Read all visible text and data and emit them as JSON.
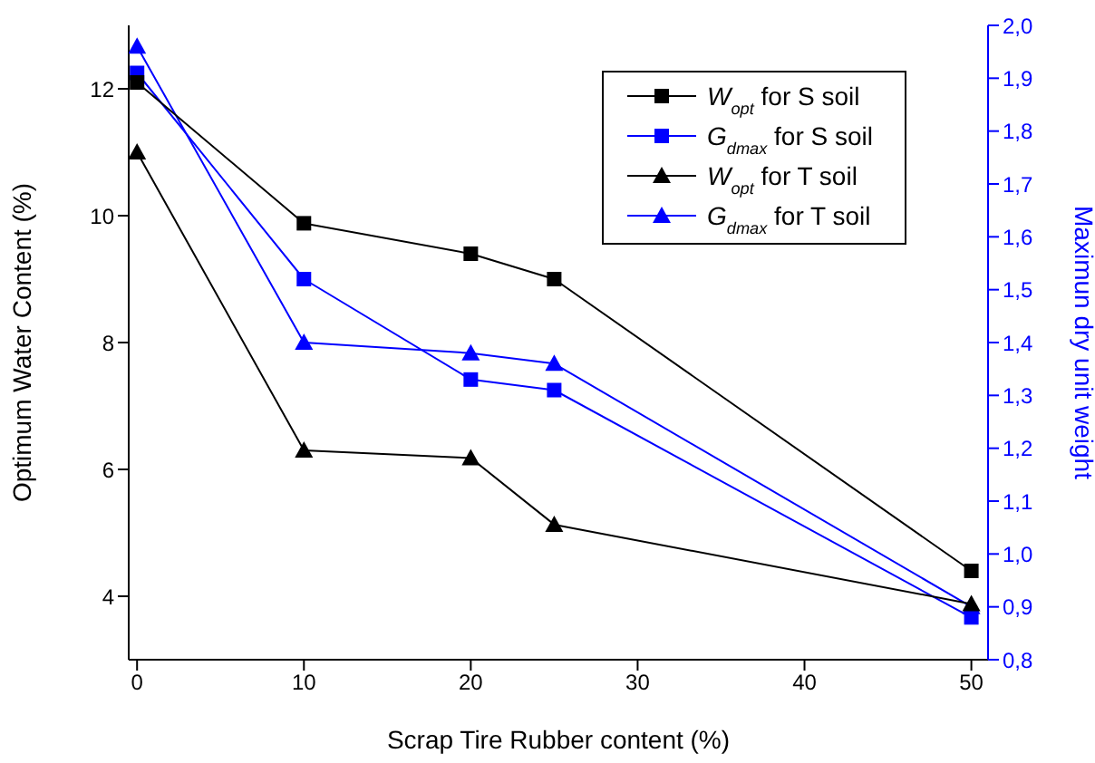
{
  "chart_data": {
    "type": "line",
    "xlabel": "Scrap Tire Rubber content (%)",
    "ylabel": "Optimum Water Content (%)",
    "y2label": "Maximun dry unit weight",
    "x": [
      0,
      10,
      20,
      25,
      50
    ],
    "series": [
      {
        "name": "W$_{opt}$ for S soil",
        "color": "#000000",
        "marker": "square",
        "values": [
          12.1,
          9.88,
          9.4,
          9.0,
          4.4
        ]
      },
      {
        "name": "G$_{dmax}$ for S soil",
        "color": "#0000ff",
        "marker": "square",
        "axis": "y2",
        "values": [
          1.91,
          1.52,
          1.33,
          1.31,
          0.88
        ]
      },
      {
        "name": "W$_{opt}$ for T soil",
        "color": "#000000",
        "marker": "triangle",
        "values": [
          11.0,
          6.3,
          6.18,
          5.13,
          3.88
        ]
      },
      {
        "name": "G$_{dmax}$ for T soil",
        "color": "#0000ff",
        "marker": "triangle",
        "axis": "y2",
        "values": [
          1.96,
          1.4,
          1.38,
          1.36,
          0.9
        ]
      }
    ],
    "xlim": [
      -0.5,
      51
    ],
    "xticks": [
      0,
      10,
      20,
      30,
      40,
      50
    ],
    "ylim": [
      3,
      13
    ],
    "yticks": [
      4,
      6,
      8,
      10,
      12
    ],
    "y2lim": [
      0.8,
      2.0
    ],
    "y2ticks": [
      {
        "value": 0.8,
        "label": "0,8"
      },
      {
        "value": 0.9,
        "label": "0,9"
      },
      {
        "value": 1.0,
        "label": "1,0"
      },
      {
        "value": 1.1,
        "label": "1,1"
      },
      {
        "value": 1.2,
        "label": "1,2"
      },
      {
        "value": 1.3,
        "label": "1,3"
      },
      {
        "value": 1.4,
        "label": "1,4"
      },
      {
        "value": 1.5,
        "label": "1,5"
      },
      {
        "value": 1.6,
        "label": "1,6"
      },
      {
        "value": 1.7,
        "label": "1,7"
      },
      {
        "value": 1.8,
        "label": "1,8"
      },
      {
        "value": 1.9,
        "label": "1,9"
      },
      {
        "value": 2.0,
        "label": "2,0"
      }
    ],
    "legend": "top right"
  }
}
